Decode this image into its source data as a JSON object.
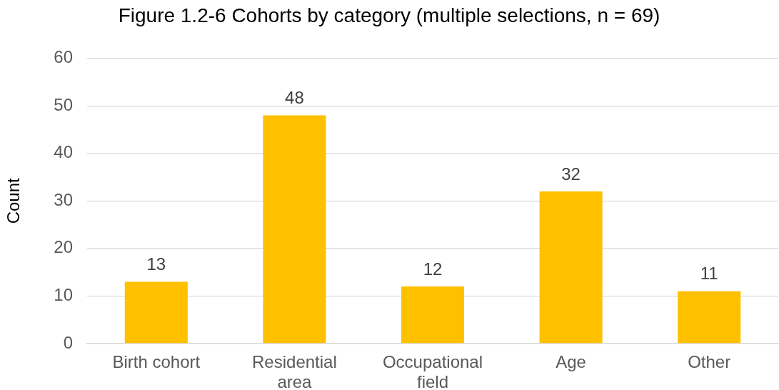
{
  "chart_data": {
    "type": "bar",
    "title": "Figure 1.2-6 Cohorts by category (multiple selections, n = 69)",
    "ylabel": "Count",
    "categories": [
      "Birth cohort",
      "Residential area",
      "Occupational field",
      "Age",
      "Other"
    ],
    "values": [
      13,
      48,
      12,
      32,
      11
    ],
    "color": "#ffc000",
    "ylim": [
      0,
      60
    ],
    "yticks": [
      0,
      10,
      20,
      30,
      40,
      50,
      60
    ],
    "grid": "y",
    "data_labels": true
  }
}
